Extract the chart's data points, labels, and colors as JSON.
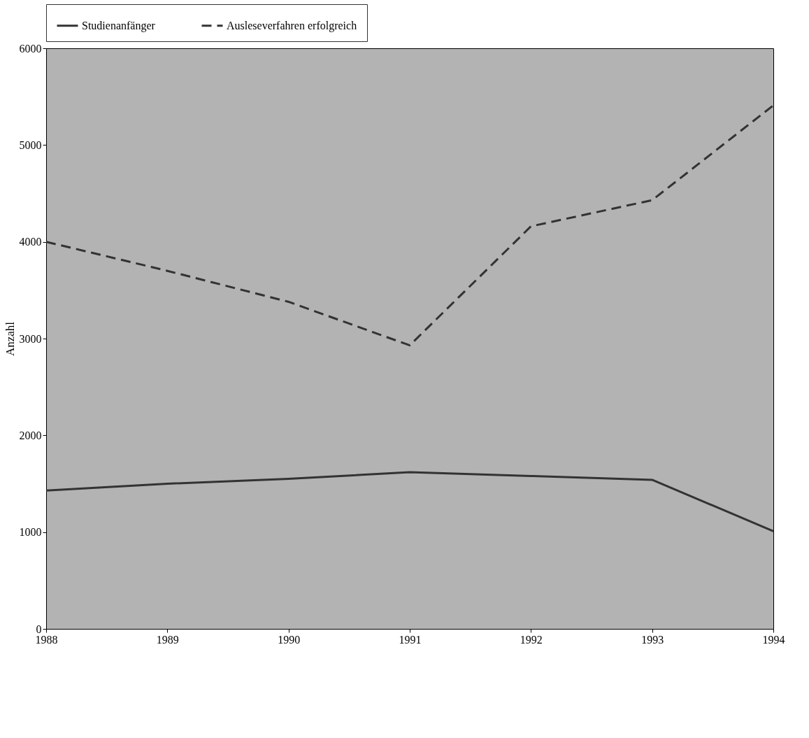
{
  "chart_data": {
    "type": "line",
    "ylabel": "Anzahl",
    "x": [
      1988,
      1989,
      1990,
      1991,
      1992,
      1993,
      1994
    ],
    "series": [
      {
        "name": "Studienanfänger",
        "color": "#333333",
        "line_style": "solid",
        "values": [
          1430,
          1500,
          1550,
          1620,
          1580,
          1540,
          1010
        ]
      },
      {
        "name": "Ausleseverfahren erfolgreich",
        "color": "#333333",
        "line_style": "dashed",
        "values": [
          4000,
          3700,
          3380,
          2930,
          4160,
          4430,
          5410
        ]
      }
    ],
    "xlim": [
      1988,
      1994
    ],
    "xticks": [
      1988,
      1989,
      1990,
      1991,
      1992,
      1993,
      1994
    ],
    "ylim": [
      0,
      6000
    ],
    "yticks": [
      0,
      1000,
      2000,
      3000,
      4000,
      5000,
      6000
    ],
    "grid": false,
    "legend": "top",
    "marker": "none"
  }
}
